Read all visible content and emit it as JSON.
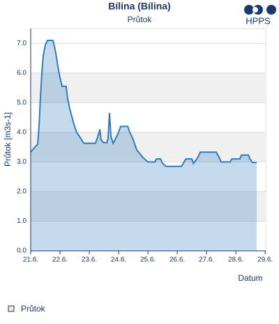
{
  "logo": "HPPS",
  "chart_data": {
    "type": "area",
    "title": "Bílina (Bílina)",
    "subtitle": "Průtok",
    "x_label": "Datum",
    "y_label": "Průtok [m3s-1]",
    "x": [
      0,
      0.1,
      0.14,
      0.24,
      0.29,
      0.33,
      0.38,
      0.43,
      0.5,
      0.57,
      0.76,
      0.81,
      0.86,
      0.93,
      1.0,
      1.07,
      1.21,
      1.26,
      1.33,
      1.4,
      1.48,
      1.57,
      1.67,
      1.81,
      2.21,
      2.29,
      2.36,
      2.4,
      2.48,
      2.6,
      2.64,
      2.69,
      2.74,
      2.81,
      2.88,
      2.98,
      3.07,
      3.31,
      3.38,
      3.48,
      3.55,
      3.62,
      3.71,
      3.83,
      4.0,
      4.24,
      4.29,
      4.43,
      4.5,
      4.62,
      5.14,
      5.21,
      5.29,
      5.5,
      5.55,
      5.67,
      5.79,
      6.33,
      6.43,
      6.5,
      6.81,
      6.86,
      7.14,
      7.19,
      7.43,
      7.48,
      7.57,
      7.71
    ],
    "series": [
      {
        "name": "Průtok",
        "color": "#2e7cc0",
        "values": [
          3.33,
          3.45,
          3.5,
          3.6,
          4.3,
          5.15,
          6.0,
          6.6,
          6.95,
          7.1,
          7.1,
          6.9,
          6.65,
          6.2,
          5.85,
          5.55,
          5.55,
          5.15,
          4.8,
          4.55,
          4.25,
          4.0,
          3.85,
          3.63,
          3.63,
          3.85,
          4.1,
          3.75,
          3.65,
          3.65,
          3.8,
          4.65,
          3.85,
          3.63,
          3.75,
          3.95,
          4.2,
          4.2,
          4.0,
          3.8,
          3.6,
          3.4,
          3.3,
          3.15,
          3.0,
          3.0,
          3.1,
          3.1,
          2.95,
          2.85,
          2.85,
          2.95,
          3.1,
          3.1,
          2.95,
          3.1,
          3.33,
          3.33,
          3.15,
          3.0,
          3.0,
          3.1,
          3.1,
          3.23,
          3.23,
          3.1,
          2.98,
          2.98
        ]
      }
    ],
    "xlim": [
      0,
      8.02
    ],
    "xticks": [
      {
        "value": 0,
        "label": "21.6."
      },
      {
        "value": 1,
        "label": "22.6."
      },
      {
        "value": 2,
        "label": "23.6."
      },
      {
        "value": 3,
        "label": "24.6."
      },
      {
        "value": 4,
        "label": "25.6."
      },
      {
        "value": 5,
        "label": "26.6."
      },
      {
        "value": 6,
        "label": "27.6."
      },
      {
        "value": 7,
        "label": "28.6."
      },
      {
        "value": 8,
        "label": "29.6."
      }
    ],
    "ylim": [
      0,
      7.5
    ],
    "yticks": [
      {
        "value": 0,
        "label": "0.0"
      },
      {
        "value": 1,
        "label": "1.0"
      },
      {
        "value": 2,
        "label": "2.0"
      },
      {
        "value": 3,
        "label": "3.0"
      },
      {
        "value": 4,
        "label": "4.0"
      },
      {
        "value": 5,
        "label": "5.0"
      },
      {
        "value": 6,
        "label": "6.0"
      },
      {
        "value": 7,
        "label": "7.0"
      }
    ],
    "grid": true
  }
}
